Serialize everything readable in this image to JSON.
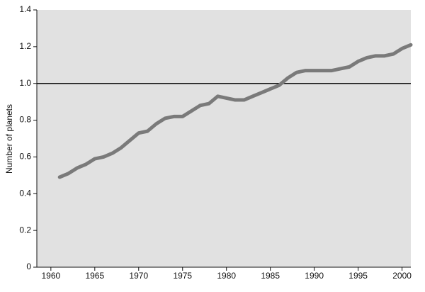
{
  "chart_data": {
    "type": "line",
    "y_label": "Number of planets",
    "x": [
      1961,
      1962,
      1963,
      1964,
      1965,
      1966,
      1967,
      1968,
      1969,
      1970,
      1971,
      1972,
      1973,
      1974,
      1975,
      1976,
      1977,
      1978,
      1979,
      1980,
      1981,
      1982,
      1983,
      1984,
      1985,
      1986,
      1987,
      1988,
      1989,
      1990,
      1991,
      1992,
      1993,
      1994,
      1995,
      1996,
      1997,
      1998,
      1999,
      2000,
      2001
    ],
    "series": [
      {
        "color": "#7a7a7a",
        "values": [
          0.49,
          0.51,
          0.54,
          0.56,
          0.59,
          0.6,
          0.62,
          0.65,
          0.69,
          0.73,
          0.74,
          0.78,
          0.81,
          0.82,
          0.82,
          0.85,
          0.88,
          0.89,
          0.93,
          0.92,
          0.91,
          0.91,
          0.93,
          0.95,
          0.97,
          0.99,
          1.03,
          1.06,
          1.07,
          1.07,
          1.07,
          1.07,
          1.08,
          1.09,
          1.12,
          1.14,
          1.15,
          1.15,
          1.16,
          1.19,
          1.21
        ]
      }
    ],
    "xlim": [
      1958.4,
      2001
    ],
    "xticks": [
      1960,
      1965,
      1970,
      1975,
      1980,
      1985,
      1990,
      1995,
      2000
    ],
    "ylim": [
      0,
      1.4
    ],
    "yticks": [
      0,
      0.2,
      0.4,
      0.6,
      0.8,
      {
        "value": 1,
        "label": "1.0"
      },
      1.2,
      1.4
    ],
    "reference_line": 1,
    "reference_color": "#111111",
    "background": "#e1e1e1"
  }
}
